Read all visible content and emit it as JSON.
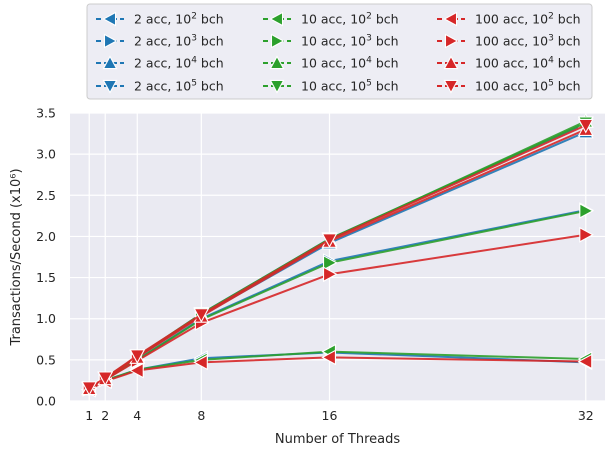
{
  "chart_data": {
    "type": "line",
    "title": "",
    "xlabel": "Number of Threads",
    "ylabel": "Transactions/Second (x10⁶)",
    "x": [
      1,
      2,
      4,
      8,
      16,
      32
    ],
    "x_tick_labels": [
      "1",
      "2",
      "4",
      "8",
      "16",
      "32"
    ],
    "ylim": [
      0,
      3.5
    ],
    "y_ticks": [
      0.0,
      0.5,
      1.0,
      1.5,
      2.0,
      2.5,
      3.0,
      3.5
    ],
    "y_tick_labels": [
      "0.0",
      "0.5",
      "1.0",
      "1.5",
      "2.0",
      "2.5",
      "3.0",
      "3.5"
    ],
    "grid": true,
    "legend_position": "top",
    "series": [
      {
        "name": "2 acc, 10² bch",
        "acc": "2 acc,",
        "exp": "2",
        "color": "#1f77b4",
        "marker": "triangle-left",
        "values": [
          0.14,
          0.25,
          0.38,
          0.52,
          0.59,
          0.47
        ]
      },
      {
        "name": "2 acc, 10³ bch",
        "acc": "2 acc,",
        "exp": "3",
        "color": "#1f77b4",
        "marker": "triangle-right",
        "values": [
          0.15,
          0.26,
          0.5,
          1.0,
          1.7,
          2.32
        ]
      },
      {
        "name": "2 acc, 10⁴ bch",
        "acc": "2 acc,",
        "exp": "4",
        "color": "#1f77b4",
        "marker": "triangle-up",
        "values": [
          0.15,
          0.27,
          0.53,
          1.04,
          1.92,
          3.27
        ]
      },
      {
        "name": "2 acc, 10⁵ bch",
        "acc": "2 acc,",
        "exp": "5",
        "color": "#1f77b4",
        "marker": "triangle-down",
        "values": [
          0.15,
          0.28,
          0.54,
          1.06,
          1.97,
          3.37
        ]
      },
      {
        "name": "10 acc, 10² bch",
        "acc": "10 acc,",
        "exp": "2",
        "color": "#2ca02c",
        "marker": "triangle-left",
        "values": [
          0.14,
          0.25,
          0.38,
          0.5,
          0.6,
          0.51
        ]
      },
      {
        "name": "10 acc, 10³ bch",
        "acc": "10 acc,",
        "exp": "3",
        "color": "#2ca02c",
        "marker": "triangle-right",
        "values": [
          0.15,
          0.26,
          0.5,
          0.99,
          1.68,
          2.31
        ]
      },
      {
        "name": "10 acc, 10⁴ bch",
        "acc": "10 acc,",
        "exp": "4",
        "color": "#2ca02c",
        "marker": "triangle-up",
        "values": [
          0.15,
          0.27,
          0.54,
          1.05,
          1.96,
          3.4
        ]
      },
      {
        "name": "10 acc, 10⁵ bch",
        "acc": "10 acc,",
        "exp": "5",
        "color": "#2ca02c",
        "marker": "triangle-down",
        "values": [
          0.15,
          0.28,
          0.54,
          1.06,
          1.97,
          3.38
        ]
      },
      {
        "name": "100 acc, 10² bch",
        "acc": "100 acc,",
        "exp": "2",
        "color": "#d62728",
        "marker": "triangle-left",
        "values": [
          0.14,
          0.24,
          0.37,
          0.47,
          0.53,
          0.48
        ]
      },
      {
        "name": "100 acc, 10³ bch",
        "acc": "100 acc,",
        "exp": "3",
        "color": "#d62728",
        "marker": "triangle-right",
        "values": [
          0.15,
          0.26,
          0.49,
          0.95,
          1.54,
          2.02
        ]
      },
      {
        "name": "100 acc, 10⁴ bch",
        "acc": "100 acc,",
        "exp": "4",
        "color": "#d62728",
        "marker": "triangle-up",
        "values": [
          0.15,
          0.27,
          0.53,
          1.03,
          1.94,
          3.3
        ]
      },
      {
        "name": "100 acc, 10⁵ bch",
        "acc": "100 acc,",
        "exp": "5",
        "color": "#d62728",
        "marker": "triangle-down",
        "values": [
          0.16,
          0.28,
          0.55,
          1.05,
          1.96,
          3.35
        ]
      }
    ]
  }
}
